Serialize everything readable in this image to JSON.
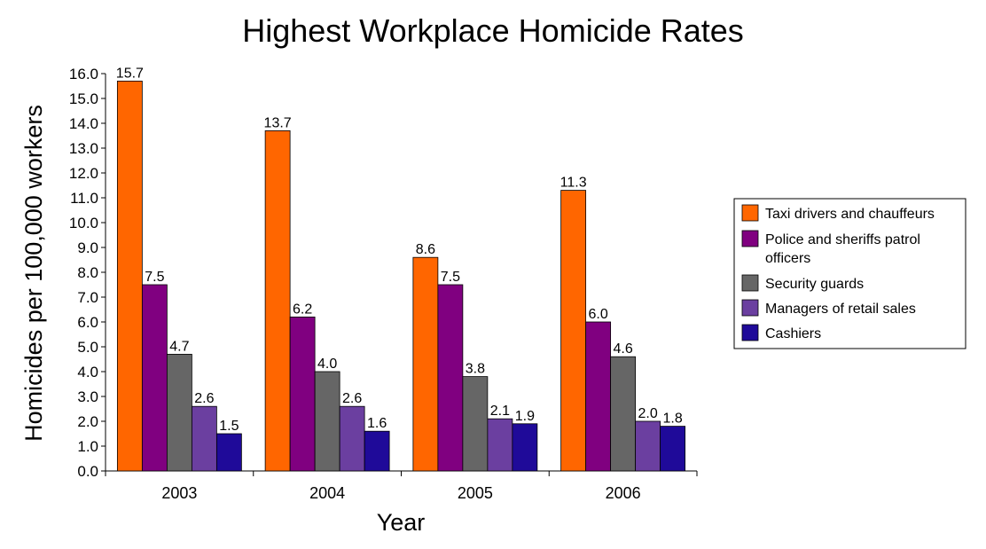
{
  "chart_data": {
    "type": "bar",
    "title": "Highest Workplace Homicide Rates",
    "xlabel": "Year",
    "ylabel": "Homicides per 100,000 workers",
    "categories": [
      "2003",
      "2004",
      "2005",
      "2006"
    ],
    "ylim": [
      0,
      16
    ],
    "ytick_step": 1,
    "ytick_labels": [
      "0.0",
      "1.0",
      "2.0",
      "3.0",
      "4.0",
      "5.0",
      "6.0",
      "7.0",
      "8.0",
      "9.0",
      "10.0",
      "11.0",
      "12.0",
      "13.0",
      "14.0",
      "15.0",
      "16.0"
    ],
    "grid": false,
    "legend_position": "right",
    "series": [
      {
        "name": "Taxi drivers and chauffeurs",
        "legend_lines": [
          "Taxi drivers and chauffeurs"
        ],
        "color": "#FF6600",
        "values": [
          15.7,
          13.7,
          8.6,
          11.3
        ],
        "labels": [
          "15.7",
          "13.7",
          "8.6",
          "11.3"
        ]
      },
      {
        "name": "Police and sheriffs patrol officers",
        "legend_lines": [
          "Police and sheriffs patrol",
          "officers"
        ],
        "color": "#800080",
        "values": [
          7.5,
          6.2,
          7.5,
          6.0
        ],
        "labels": [
          "7.5",
          "6.2",
          "7.5",
          "6.0"
        ]
      },
      {
        "name": "Security guards",
        "legend_lines": [
          "Security guards"
        ],
        "color": "#666666",
        "values": [
          4.7,
          4.0,
          3.8,
          4.6
        ],
        "labels": [
          "4.7",
          "4.0",
          "3.8",
          "4.6"
        ]
      },
      {
        "name": "Managers of retail sales",
        "legend_lines": [
          "Managers of retail sales"
        ],
        "color": "#6B3FA0",
        "values": [
          2.6,
          2.6,
          2.1,
          2.0
        ],
        "labels": [
          "2.6",
          "2.6",
          "2.1",
          "2.0"
        ]
      },
      {
        "name": "Cashiers",
        "legend_lines": [
          "Cashiers"
        ],
        "color": "#1F0A99",
        "values": [
          1.5,
          1.6,
          1.9,
          1.8
        ],
        "labels": [
          "1.5",
          "1.6",
          "1.9",
          "1.8"
        ]
      }
    ]
  }
}
